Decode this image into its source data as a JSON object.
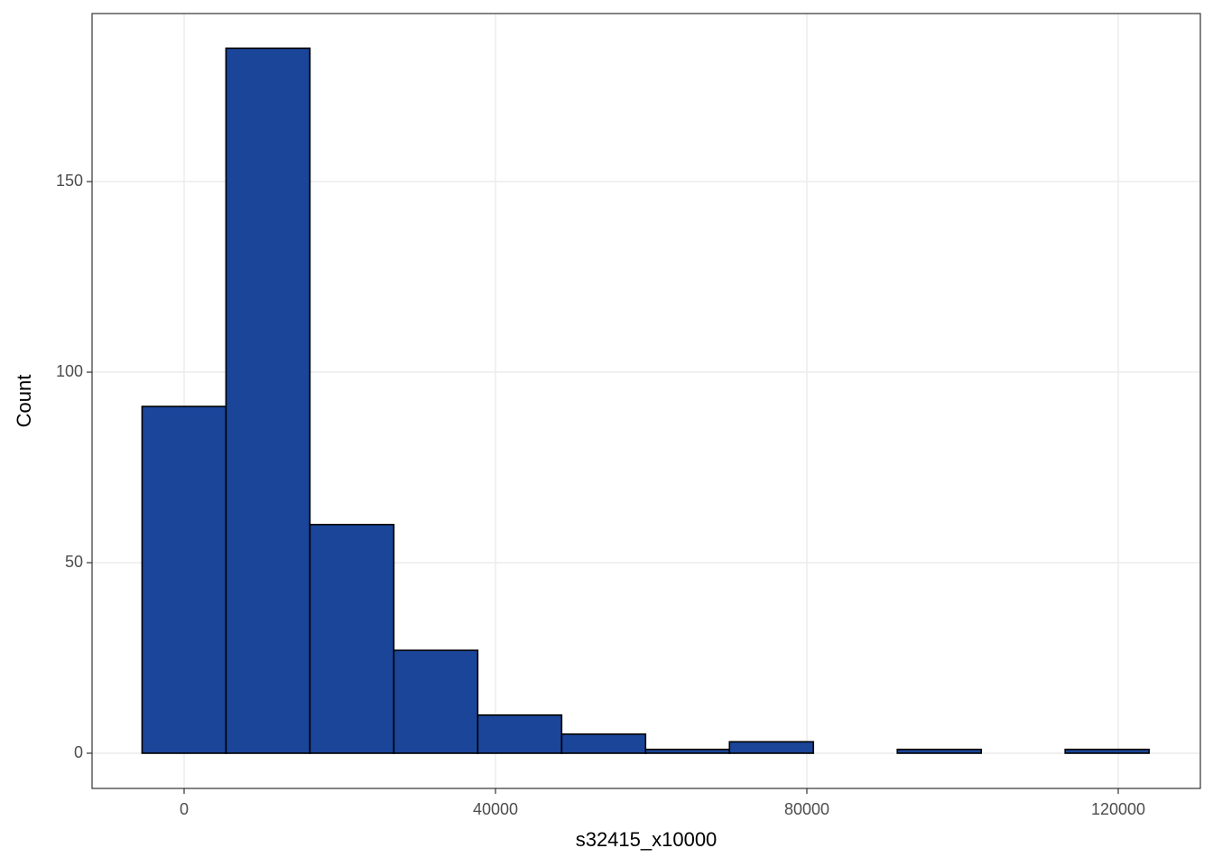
{
  "chart_data": {
    "type": "histogram",
    "x_label": "s32415_x10000",
    "y_label": "Count",
    "bins": [
      -5400,
      5380,
      16160,
      26940,
      37720,
      48500,
      59280,
      70060,
      80840,
      91620,
      102400,
      113180,
      123960
    ],
    "values": [
      91,
      185,
      60,
      27,
      10,
      5,
      1,
      3,
      0,
      1,
      0,
      1
    ],
    "color": "#1a4599",
    "xlim": [
      -11826,
      130551
    ],
    "xticks": [
      0,
      40000,
      80000,
      120000
    ],
    "ylim": [
      -9.24,
      194.1
    ],
    "yticks": [
      0,
      50,
      100,
      150
    ],
    "grid": true
  }
}
